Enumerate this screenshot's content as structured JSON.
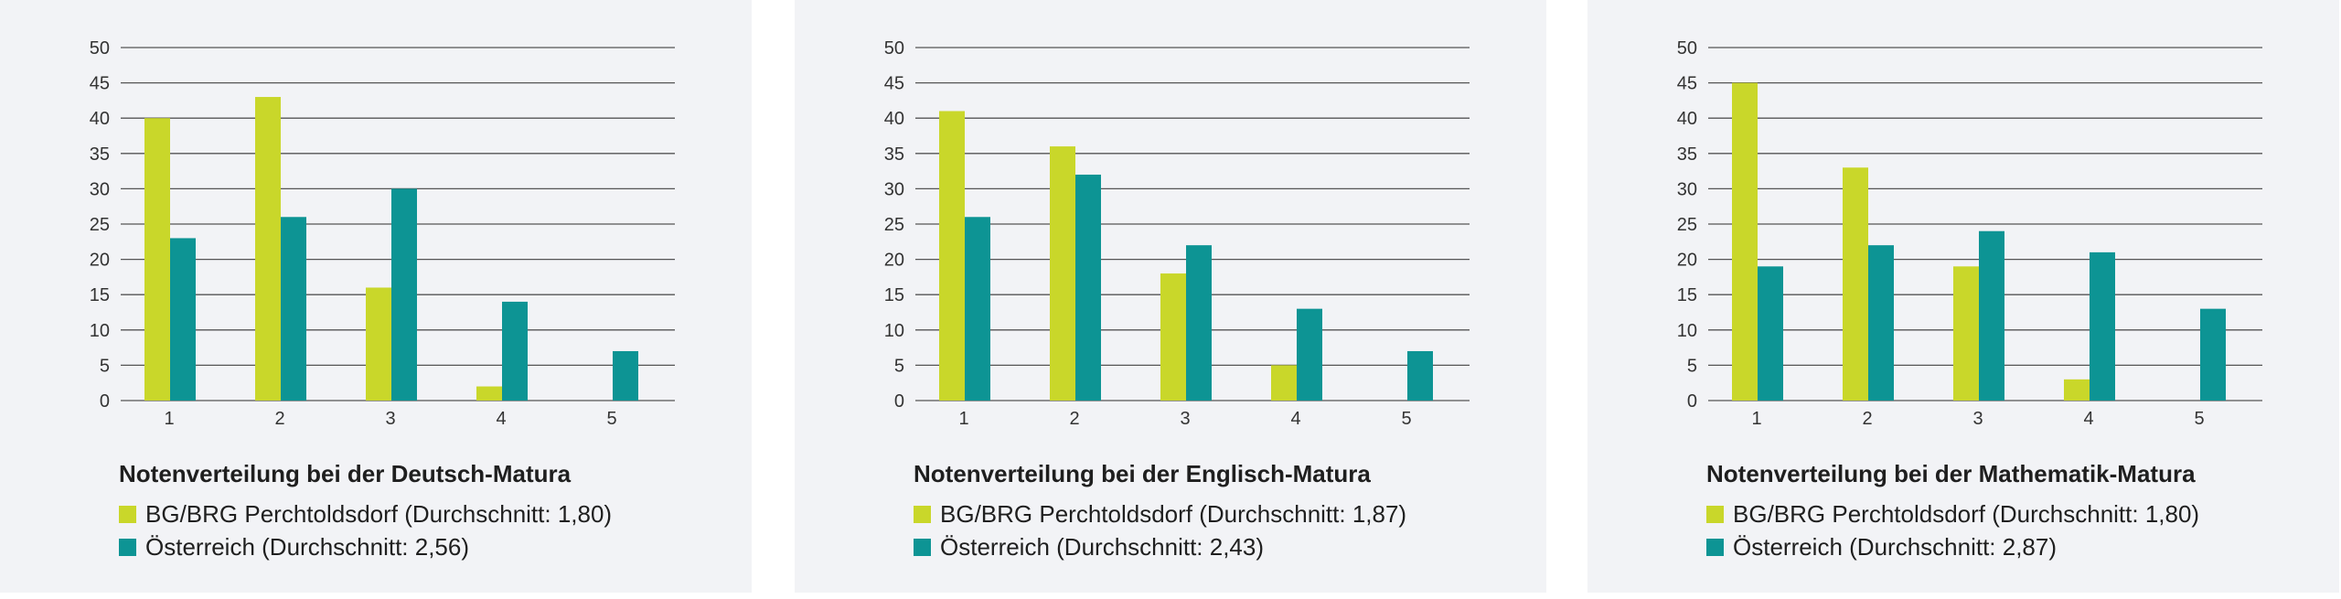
{
  "colors": {
    "school": "#c9d72a",
    "austria": "#0d9494",
    "gridline": "#555555",
    "background": "#f2f3f6"
  },
  "legend": {
    "school_label": "BG/BRG Perchtoldsdorf",
    "austria_label": "Österreich"
  },
  "chart_data": [
    {
      "type": "bar",
      "title": "Notenverteilung bei der Deutsch-Matura",
      "categories": [
        "1",
        "2",
        "3",
        "4",
        "5"
      ],
      "ylim": [
        0,
        50
      ],
      "yticks": [
        0,
        5,
        10,
        15,
        20,
        25,
        30,
        35,
        40,
        45,
        50
      ],
      "grid": true,
      "legend_position": "bottom",
      "series": [
        {
          "name": "BG/BRG Perchtoldsdorf (Durchschnitt: 1,80)",
          "values": [
            40,
            43,
            16,
            2,
            0
          ]
        },
        {
          "name": "Österreich (Durchschnitt: 2,56)",
          "values": [
            23,
            26,
            30,
            14,
            7
          ]
        }
      ]
    },
    {
      "type": "bar",
      "title": "Notenverteilung bei der Englisch-Matura",
      "categories": [
        "1",
        "2",
        "3",
        "4",
        "5"
      ],
      "ylim": [
        0,
        50
      ],
      "yticks": [
        0,
        5,
        10,
        15,
        20,
        25,
        30,
        35,
        40,
        45,
        50
      ],
      "grid": true,
      "legend_position": "bottom",
      "series": [
        {
          "name": "BG/BRG Perchtoldsdorf (Durchschnitt: 1,87)",
          "values": [
            41,
            36,
            18,
            5,
            0
          ]
        },
        {
          "name": "Österreich (Durchschnitt: 2,43)",
          "values": [
            26,
            32,
            22,
            13,
            7
          ]
        }
      ]
    },
    {
      "type": "bar",
      "title": "Notenverteilung bei der Mathematik-Matura",
      "categories": [
        "1",
        "2",
        "3",
        "4",
        "5"
      ],
      "ylim": [
        0,
        50
      ],
      "yticks": [
        0,
        5,
        10,
        15,
        20,
        25,
        30,
        35,
        40,
        45,
        50
      ],
      "grid": true,
      "legend_position": "bottom",
      "series": [
        {
          "name": "BG/BRG Perchtoldsdorf (Durchschnitt: 1,80)",
          "values": [
            45,
            33,
            19,
            3,
            0
          ]
        },
        {
          "name": "Österreich (Durchschnitt: 2,87)",
          "values": [
            19,
            22,
            24,
            21,
            13
          ]
        }
      ]
    }
  ]
}
